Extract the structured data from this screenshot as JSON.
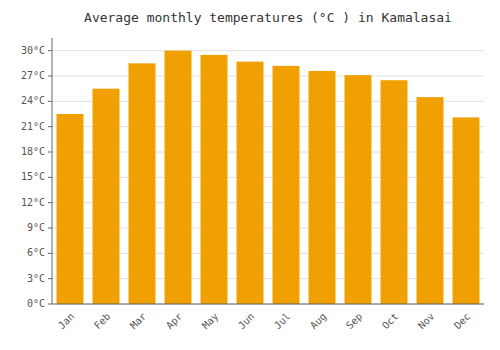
{
  "chart_data": {
    "type": "bar",
    "title": "Average monthly temperatures (°C ) in Kamalasai",
    "categories": [
      "Jan",
      "Feb",
      "Mar",
      "Apr",
      "May",
      "Jun",
      "Jul",
      "Aug",
      "Sep",
      "Oct",
      "Nov",
      "Dec"
    ],
    "values": [
      22.5,
      25.5,
      28.5,
      30.0,
      29.5,
      28.7,
      28.2,
      27.6,
      27.1,
      26.5,
      24.5,
      22.1
    ],
    "color": "#F0A000",
    "ylim": [
      0,
      31.5
    ],
    "yticks": [
      {
        "value": 0,
        "label": "0°C"
      },
      {
        "value": 3,
        "label": "3°C"
      },
      {
        "value": 6,
        "label": "6°C"
      },
      {
        "value": 9,
        "label": "9°C"
      },
      {
        "value": 12,
        "label": "12°C"
      },
      {
        "value": 15,
        "label": "15°C"
      },
      {
        "value": 18,
        "label": "18°C"
      },
      {
        "value": 21,
        "label": "21°C"
      },
      {
        "value": 24,
        "label": "24°C"
      },
      {
        "value": 27,
        "label": "27°C"
      },
      {
        "value": 30,
        "label": "30°C"
      }
    ],
    "grid": true
  }
}
